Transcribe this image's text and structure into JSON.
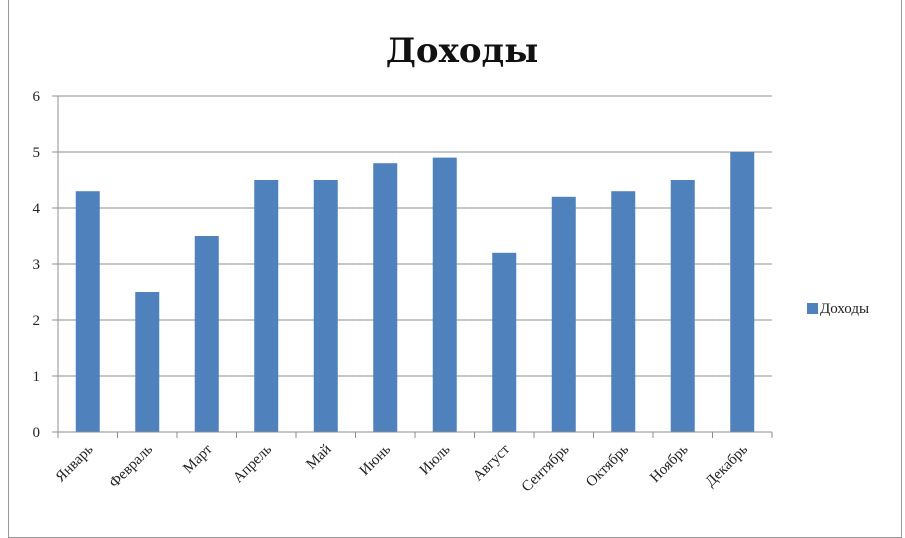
{
  "chart_data": {
    "type": "bar",
    "title": "Доходы",
    "xlabel": "",
    "ylabel": "",
    "categories": [
      "Январь",
      "Февраль",
      "Март",
      "Апрель",
      "Май",
      "Июнь",
      "Июль",
      "Август",
      "Сентябрь",
      "Октябрь",
      "Ноябрь",
      "Декабрь"
    ],
    "series": [
      {
        "name": "Доходы",
        "values": [
          4.3,
          2.5,
          3.5,
          4.5,
          4.5,
          4.8,
          4.9,
          3.2,
          4.2,
          4.3,
          4.5,
          5.0
        ]
      }
    ],
    "ylim": [
      0,
      6
    ],
    "yticks": [
      0,
      1,
      2,
      3,
      4,
      5,
      6
    ],
    "grid": true,
    "legend_position": "right",
    "bar_color": "#4F81BD"
  }
}
